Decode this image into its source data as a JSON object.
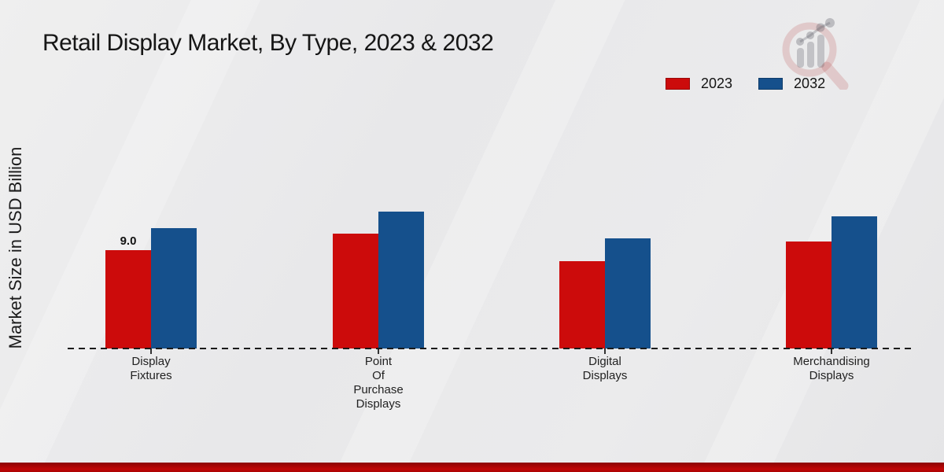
{
  "colors": {
    "background": "#e9e9ea",
    "series_2023": "#cc0b0b",
    "series_2032": "#15508c",
    "footer_bar": "#b30505",
    "axis": "#1a1a1a",
    "watermark_pink": "rgba(180,50,50,0.18)",
    "watermark_gray": "rgba(90,90,100,0.28)"
  },
  "icons": {
    "watermark": "magnifier-growth-chart-icon"
  },
  "chart_data": {
    "type": "bar",
    "title": "Retail Display Market, By Type, 2023 & 2032",
    "ylabel": "Market Size in USD Billion",
    "xlabel": "",
    "categories": [
      "Display\nFixtures",
      "Point\nOf\nPurchase\nDisplays",
      "Digital\nDisplays",
      "Merchandising\nDisplays"
    ],
    "series": [
      {
        "name": "2023",
        "color": "#cc0b0b",
        "values": [
          9.0,
          10.5,
          8.0,
          9.8
        ],
        "value_labels": [
          "9.0",
          "",
          "",
          ""
        ]
      },
      {
        "name": "2032",
        "color": "#15508c",
        "values": [
          11.0,
          12.5,
          10.1,
          12.1
        ],
        "value_labels": [
          "",
          "",
          "",
          ""
        ]
      }
    ],
    "ylim": [
      0,
      14.2
    ],
    "grid": false,
    "legend_position": "top-right",
    "baseline_style": "dashed"
  }
}
